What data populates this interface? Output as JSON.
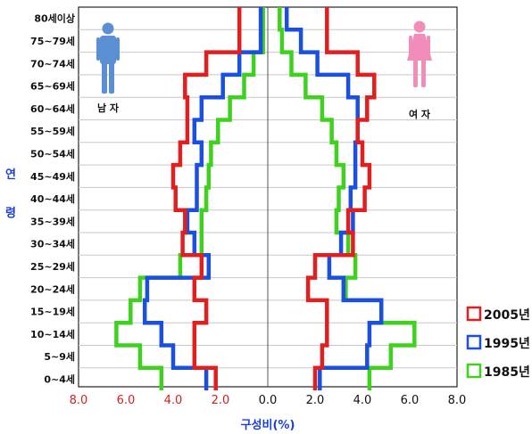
{
  "chart_data": {
    "type": "line",
    "xlabel": "구성비(%)",
    "ylabel": "연령",
    "xlim": [
      -8,
      8
    ],
    "x_ticks": [
      {
        "label": "8.0",
        "value": -8
      },
      {
        "label": "6.0",
        "value": -6
      },
      {
        "label": "4.0",
        "value": -4
      },
      {
        "label": "2.0",
        "value": -2
      },
      {
        "label": "0.0",
        "value": 0
      },
      {
        "label": "2.0",
        "value": 2
      },
      {
        "label": "4.0",
        "value": 4
      },
      {
        "label": "6.0",
        "value": 6
      },
      {
        "label": "8.0",
        "value": 8
      }
    ],
    "categories": [
      "80세이상",
      "75~79세",
      "70~74세",
      "65~69세",
      "60~64세",
      "55~59세",
      "50~54세",
      "45~49세",
      "40~44세",
      "35~39세",
      "30~34세",
      "25~29세",
      "20~24세",
      "15~19세",
      "10~14세",
      "5~9세",
      "0~4세"
    ],
    "male_label": "남 자",
    "female_label": "여 자",
    "legend_position": "bottom-right",
    "grid": true,
    "series": [
      {
        "name": "2005년",
        "color": "#e02020",
        "male": [
          1.2,
          1.2,
          2.6,
          3.5,
          3.4,
          3.4,
          3.7,
          4.0,
          3.9,
          3.5,
          3.6,
          2.8,
          3.1,
          2.6,
          3.1,
          3.1,
          2.2
        ],
        "female": [
          2.5,
          2.5,
          3.8,
          4.5,
          4.2,
          3.8,
          4.0,
          4.3,
          4.1,
          3.4,
          3.6,
          2.0,
          1.7,
          2.5,
          2.5,
          2.3,
          2.0
        ]
      },
      {
        "name": "1995년",
        "color": "#1a4fe0",
        "male": [
          0.3,
          0.3,
          1.2,
          1.9,
          2.8,
          3.1,
          2.8,
          3.0,
          3.0,
          3.4,
          3.1,
          2.5,
          5.1,
          5.2,
          4.5,
          4.0,
          2.6
        ],
        "female": [
          0.8,
          1.4,
          2.1,
          3.4,
          3.8,
          3.8,
          3.7,
          3.7,
          3.5,
          3.6,
          3.1,
          2.6,
          3.2,
          4.8,
          4.3,
          4.2,
          2.2
        ]
      },
      {
        "name": "1985년",
        "color": "#3ed21e",
        "male": [
          0.2,
          0.2,
          0.6,
          1.0,
          1.6,
          2.1,
          2.4,
          2.5,
          2.6,
          2.8,
          2.8,
          3.7,
          5.4,
          5.8,
          6.4,
          5.4,
          4.5
        ],
        "female": [
          0.5,
          0.6,
          1.0,
          1.6,
          2.3,
          2.7,
          2.9,
          3.2,
          3.0,
          2.9,
          3.4,
          3.7,
          3.3,
          4.8,
          6.2,
          5.2,
          4.3
        ]
      }
    ]
  }
}
